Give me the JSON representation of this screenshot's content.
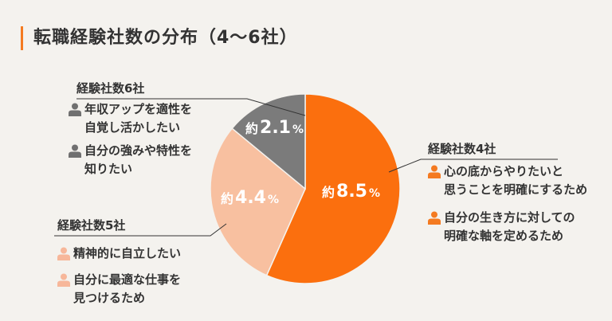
{
  "title": "転職経験社数の分布（4〜6社）",
  "colors": {
    "accent": "#f47a20",
    "slice_4": "#fb6f0e",
    "slice_5": "#f8c0a0",
    "slice_6": "#7b7b7b",
    "person_dark": "#707070",
    "person_light": "#f7b79a"
  },
  "chart_data": {
    "type": "pie",
    "title": "転職経験社数の分布（4〜6社）",
    "categories": [
      "経験社数4社",
      "経験社数5社",
      "経験社数6社"
    ],
    "values": [
      8.5,
      4.4,
      2.1
    ],
    "value_prefix": "約",
    "unit": "%",
    "labels": [
      {
        "pre": "約",
        "num": "8.5",
        "unit": "%"
      },
      {
        "pre": "約",
        "num": "4.4",
        "unit": "%"
      },
      {
        "pre": "約",
        "num": "2.1",
        "unit": "%"
      }
    ]
  },
  "groups": {
    "company4": {
      "label": "経験社数4社",
      "reasons": [
        {
          "icon": "person-icon",
          "lines": [
            "心の底からやりたいと",
            "思うことを明確にするため"
          ]
        },
        {
          "icon": "person-icon",
          "lines": [
            "自分の生き方に対しての",
            "明確な軸を定めるため"
          ]
        }
      ]
    },
    "company5": {
      "label": "経験社数5社",
      "reasons": [
        {
          "icon": "person-icon",
          "lines": [
            "精神的に自立したい"
          ]
        },
        {
          "icon": "person-icon",
          "lines": [
            "自分に最適な仕事を",
            "見つけるため"
          ]
        }
      ]
    },
    "company6": {
      "label": "経験社数6社",
      "reasons": [
        {
          "icon": "person-icon",
          "lines": [
            "年収アップを適性を",
            "自覚し活かしたい"
          ]
        },
        {
          "icon": "person-icon",
          "lines": [
            "自分の強みや特性を",
            "知りたい"
          ]
        }
      ]
    }
  }
}
